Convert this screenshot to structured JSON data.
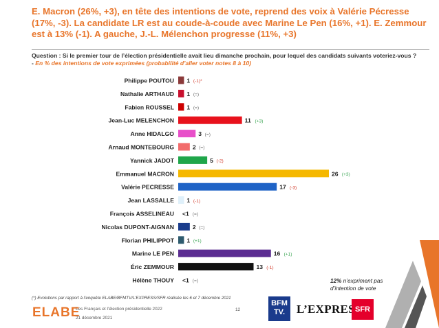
{
  "headline": "E. Macron (26%, +3), en tête des intentions de vote, reprend des voix à Valérie Pécresse (17%, -3). La candidate LR est au coude-à-coude avec Marine Le Pen (16%, +1). E. Zemmour est à 13% (-1). A gauche, J.-L. Mélenchon progresse (11%, +3)",
  "question": {
    "bold": "Question : Si le premier tour de l’élection présidentielle avait lieu dimanche prochain, pour lequel des candidats suivants voteriez-vous ? -",
    "sub": "En % des intentions de vote exprimées (probabilité d’aller voter notes 8 à 10)"
  },
  "chart_data": {
    "type": "bar",
    "orientation": "horizontal",
    "categories": [
      "Philippe POUTOU",
      "Nathalie ARTHAUD",
      "Fabien ROUSSEL",
      "Jean-Luc MELENCHON",
      "Anne HIDALGO",
      "Arnaud MONTEBOURG",
      "Yannick JADOT",
      "Emmanuel MACRON",
      "Valérie PECRESSE",
      "Jean LASSALLE",
      "François ASSELINEAU",
      "Nicolas DUPONT-AIGNAN",
      "Florian PHILIPPOT",
      "Marine LE PEN",
      "Éric ZEMMOUR",
      "Hélène THOUY"
    ],
    "values": [
      1,
      1,
      1,
      11,
      3,
      2,
      5,
      26,
      17,
      1,
      0.5,
      2,
      1,
      16,
      13,
      0.5
    ],
    "value_labels": [
      "1",
      "1",
      "1",
      "11",
      "3",
      "2",
      "5",
      "26",
      "17",
      "1",
      "<1",
      "2",
      "1",
      "16",
      "13",
      "<1"
    ],
    "changes": [
      "(-1)*",
      "(=)",
      "(=)",
      "(+3)",
      "(=)",
      "(=)",
      "(-2)",
      "(+3)",
      "(-3)",
      "(-1)",
      "(=)",
      "(=)",
      "(+1)",
      "(+1)",
      "(-1)",
      "(=)"
    ],
    "colors": [
      "#8b3a3a",
      "#c8102e",
      "#cc0000",
      "#e8121c",
      "#e84fc9",
      "#f26c6c",
      "#1fa64a",
      "#f5b800",
      "#1f63c6",
      "#dff0fa",
      "#ffffff",
      "#1a3c8c",
      "#2e5b6e",
      "#5b2d91",
      "#111111",
      "#ffffff"
    ],
    "change_colors": {
      "up": "#3aa552",
      "down": "#d23a2a",
      "neutral": "#666666"
    },
    "xlim": [
      0,
      26
    ]
  },
  "silent_note": {
    "value": "12%",
    "text": "n’expriment pas d’intention de vote"
  },
  "footnote": "(*) Evolutions par rapport à l’enquête ELABE/BFMTV/L’EXPRESS/SFR réalisée les 6 et 7 décembre 2021",
  "footer": {
    "brand": "ELABE",
    "survey": "Les Français et l’élection présidentielle 2022",
    "date": "21 décembre 2021",
    "page": "12"
  },
  "partners": {
    "bfm_line1": "BFM",
    "bfm_line2": "TV.",
    "express": "L’EXPRESS",
    "sfr": "SFR"
  }
}
